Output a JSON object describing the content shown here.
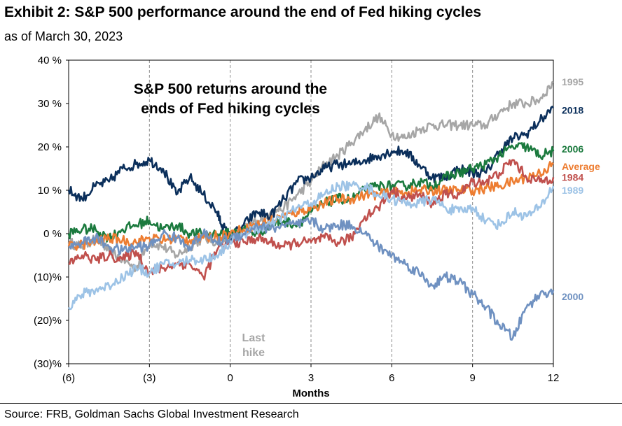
{
  "header": {
    "title": "Exhibit 2: S&P 500 performance around the end of Fed hiking cycles",
    "subtitle": "as of March 30, 2023"
  },
  "footer": {
    "source": "Source: FRB, Goldman Sachs Global Investment Research"
  },
  "chart_data": {
    "type": "line",
    "title": "S&P 500 returns around the ends of Fed hiking cycles",
    "title_lines": [
      "S&P 500 returns around the",
      "ends of Fed hiking cycles"
    ],
    "xlabel": "Months",
    "ylabel": "",
    "xlim": [
      -6,
      12
    ],
    "ylim": [
      -30,
      40
    ],
    "x_ticks": [
      {
        "value": -6,
        "label": "(6)"
      },
      {
        "value": -3,
        "label": "(3)"
      },
      {
        "value": 0,
        "label": "0"
      },
      {
        "value": 3,
        "label": "3"
      },
      {
        "value": 6,
        "label": "6"
      },
      {
        "value": 9,
        "label": "9"
      },
      {
        "value": 12,
        "label": "12"
      }
    ],
    "y_ticks": [
      {
        "value": 40,
        "label": "40 %"
      },
      {
        "value": 30,
        "label": "30 %"
      },
      {
        "value": 20,
        "label": "20 %"
      },
      {
        "value": 10,
        "label": "10 %"
      },
      {
        "value": 0,
        "label": "0 %"
      },
      {
        "value": -10,
        "label": "(10)%"
      },
      {
        "value": -20,
        "label": "(20)%"
      },
      {
        "value": -30,
        "label": "(30)%"
      }
    ],
    "vertical_gridlines": [
      -3,
      0,
      3,
      6,
      9,
      12
    ],
    "annotation": {
      "lines": [
        "Last",
        "hike"
      ],
      "color": "#a6a6a6"
    },
    "legend_position": "right",
    "series": [
      {
        "name": "1995",
        "color": "#a6a6a6",
        "label_y": 35,
        "x": [
          -6,
          -5.5,
          -5,
          -4.5,
          -4,
          -3.5,
          -3,
          -2.5,
          -2,
          -1.5,
          -1,
          -0.5,
          0,
          0.5,
          1,
          1.5,
          2,
          2.5,
          3,
          3.5,
          4,
          4.5,
          5,
          5.5,
          6,
          6.5,
          7,
          7.5,
          8,
          8.5,
          9,
          9.5,
          10,
          10.5,
          11,
          11.5,
          12
        ],
        "values": [
          -2,
          -3,
          -1,
          -4,
          -6,
          -8,
          -2,
          -3,
          -5,
          -3,
          -1,
          -2,
          -1,
          1,
          3,
          5,
          6,
          9,
          12,
          16,
          18,
          21,
          24,
          27,
          23,
          22,
          24,
          25,
          25,
          25,
          25,
          25,
          28,
          30,
          30,
          31,
          35
        ]
      },
      {
        "name": "2018",
        "color": "#0b2f5b",
        "label_y": 28.5,
        "x": [
          -6,
          -5.5,
          -5,
          -4.5,
          -4,
          -3.5,
          -3,
          -2.5,
          -2,
          -1.5,
          -1,
          -0.5,
          -0.3,
          0,
          0.5,
          1,
          1.5,
          2,
          2.5,
          3,
          3.5,
          4,
          4.5,
          5,
          5.5,
          6,
          6.5,
          7,
          7.5,
          8,
          8.5,
          9,
          9.5,
          10,
          10.5,
          11,
          11.5,
          12
        ],
        "values": [
          10,
          8,
          11,
          12,
          15,
          16,
          17,
          15,
          9,
          13,
          9,
          5,
          2,
          -1,
          2,
          5,
          4,
          8,
          12,
          13,
          15,
          16,
          16,
          17,
          18,
          19,
          19,
          16,
          13,
          13,
          15,
          14,
          14,
          19,
          22,
          23,
          26,
          29
        ]
      },
      {
        "name": "2006",
        "color": "#1b7a3e",
        "label_y": 19.5,
        "x": [
          -6,
          -5.5,
          -5,
          -4.5,
          -4,
          -3.5,
          -3,
          -2.5,
          -2,
          -1.5,
          -1,
          -0.5,
          0,
          0.5,
          1,
          1.5,
          2,
          2.5,
          3,
          3.5,
          4,
          4.5,
          5,
          5.5,
          6,
          6.5,
          7,
          7.5,
          8,
          8.5,
          9,
          9.5,
          10,
          10.5,
          11,
          11.5,
          12
        ],
        "values": [
          0,
          1,
          1,
          -1,
          1,
          2,
          3,
          1,
          2,
          0,
          0,
          0,
          0,
          1,
          0,
          2,
          3,
          2,
          5,
          7,
          8,
          8,
          10,
          11,
          11,
          11,
          12,
          11,
          13,
          14,
          15,
          16,
          18,
          20,
          20,
          18,
          19
        ]
      },
      {
        "name": "Average",
        "color": "#ed7d31",
        "label_y": 15.5,
        "x": [
          -6,
          -5.5,
          -5,
          -4.5,
          -4,
          -3.5,
          -3,
          -2.5,
          -2,
          -1.5,
          -1,
          -0.5,
          0,
          0.5,
          1,
          1.5,
          2,
          2.5,
          3,
          3.5,
          4,
          4.5,
          5,
          5.5,
          6,
          6.5,
          7,
          7.5,
          8,
          8.5,
          9,
          9.5,
          10,
          10.5,
          11,
          11.5,
          12
        ],
        "values": [
          -3,
          -2.5,
          -2,
          -1,
          -1.5,
          -2,
          -1,
          -1.5,
          -1,
          -1.5,
          -1,
          -0.5,
          0,
          1,
          2,
          3,
          4,
          5,
          6,
          7,
          8,
          8,
          9,
          9,
          9.5,
          9.5,
          10,
          10,
          10,
          10,
          10,
          10.5,
          11,
          12,
          13,
          14,
          16
        ]
      },
      {
        "name": "1984",
        "color": "#c0504d",
        "label_y": 13,
        "x": [
          -6,
          -5.5,
          -5,
          -4.5,
          -4,
          -3.5,
          -3,
          -2.5,
          -2,
          -1.5,
          -1,
          -0.5,
          0,
          0.5,
          1,
          1.5,
          2,
          2.5,
          3,
          3.5,
          4,
          4.5,
          5,
          5.5,
          6,
          6.5,
          7,
          7.5,
          8,
          8.5,
          9,
          9.5,
          10,
          10.5,
          11,
          11.5,
          12
        ],
        "values": [
          -7,
          -5,
          -6,
          -5,
          -6,
          -4,
          -9,
          -8,
          -7,
          -7,
          -10,
          -4,
          -2,
          -2,
          -1,
          -2,
          -3,
          -2,
          -2,
          -1,
          -2,
          -1,
          4,
          6,
          10,
          8,
          9,
          7,
          9,
          9,
          12,
          12,
          14,
          17,
          13,
          12,
          13
        ]
      },
      {
        "name": "1989",
        "color": "#9dc3e6",
        "label_y": 10,
        "x": [
          -6,
          -5.5,
          -5,
          -4.5,
          -4,
          -3.5,
          -3,
          -2.5,
          -2,
          -1.5,
          -1,
          -0.5,
          0,
          0.5,
          1,
          1.5,
          2,
          2.5,
          3,
          3.5,
          4,
          4.5,
          5,
          5.5,
          6,
          6.5,
          7,
          7.5,
          8,
          8.5,
          9,
          9.5,
          10,
          10.5,
          11,
          11.5,
          12
        ],
        "values": [
          -17,
          -14,
          -13,
          -12,
          -10,
          -8,
          -9,
          -7,
          -7,
          -6,
          -6,
          -5,
          -2,
          0,
          1,
          2,
          4,
          6,
          7,
          9,
          11,
          11,
          11,
          9,
          8,
          7,
          7,
          8,
          6,
          5,
          6,
          3,
          2,
          5,
          4,
          6,
          11
        ]
      },
      {
        "name": "2000",
        "color": "#6f91c1",
        "label_y": -14.5,
        "x": [
          -6,
          -5.5,
          -5,
          -4.5,
          -4,
          -3.5,
          -3,
          -2.5,
          -2,
          -1.5,
          -1,
          -0.5,
          0,
          0.5,
          1,
          1.5,
          2,
          2.5,
          3,
          3.5,
          4,
          4.5,
          5,
          5.5,
          6,
          6.5,
          7,
          7.5,
          8,
          8.5,
          9,
          9.5,
          10,
          10.5,
          11,
          11.5,
          12
        ],
        "values": [
          -3,
          -2,
          -1,
          -3,
          -4,
          -3,
          -3,
          0,
          -1,
          -3,
          0,
          -2,
          -1,
          0,
          2,
          1,
          2,
          2,
          3,
          1,
          2,
          2,
          0,
          -3,
          -5,
          -7,
          -9,
          -12,
          -10,
          -11,
          -14,
          -17,
          -21,
          -24,
          -17,
          -14,
          -13
        ]
      }
    ]
  }
}
